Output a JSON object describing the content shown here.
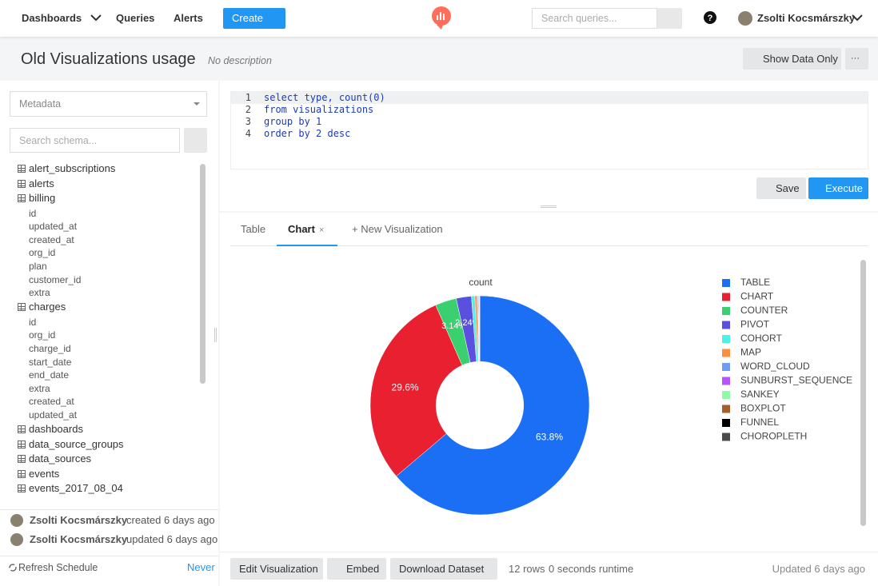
{
  "nav": {
    "items": [
      "Dashboards",
      "Queries",
      "Alerts"
    ],
    "create": "Create",
    "search_placeholder": "Search queries...",
    "user": "Zsolti Kocsmárszky"
  },
  "page": {
    "title": "Old Visualizations usage",
    "description": "No description",
    "show_data_only": "Show Data Only",
    "more": "···"
  },
  "sidebar": {
    "datasource": "Metadata",
    "search_placeholder": "Search schema...",
    "tables": [
      {
        "name": "alert_subscriptions",
        "columns": []
      },
      {
        "name": "alerts",
        "columns": []
      },
      {
        "name": "billing",
        "columns": [
          "id",
          "updated_at",
          "created_at",
          "org_id",
          "plan",
          "customer_id",
          "extra"
        ]
      },
      {
        "name": "charges",
        "columns": [
          "id",
          "org_id",
          "charge_id",
          "start_date",
          "end_date",
          "extra",
          "created_at",
          "updated_at"
        ]
      },
      {
        "name": "dashboards",
        "columns": []
      },
      {
        "name": "data_source_groups",
        "columns": []
      },
      {
        "name": "data_sources",
        "columns": []
      },
      {
        "name": "events",
        "columns": []
      },
      {
        "name": "events_2017_08_04",
        "columns": []
      }
    ],
    "history": [
      {
        "user": "Zsolti Kocsmárszky",
        "action": "created 6 days ago"
      },
      {
        "user": "Zsolti Kocsmárszky",
        "action": "updated 6 days ago"
      }
    ],
    "refresh": "Refresh Schedule",
    "schedule": "Never"
  },
  "editor": {
    "lines": [
      {
        "number": 1,
        "code": "select type, count(0)"
      },
      {
        "number": 2,
        "code": "from visualizations"
      },
      {
        "number": 3,
        "code": "group by 1"
      },
      {
        "number": 4,
        "code": "order by 2 desc"
      }
    ],
    "save": "Save",
    "execute": "Execute"
  },
  "tabs": {
    "items": [
      "Table",
      "Chart",
      "+ New Visualization"
    ],
    "close": "×"
  },
  "chart_data": {
    "type": "pie",
    "title": "count",
    "hole": 0.4,
    "legend": "right",
    "categories": [
      "TABLE",
      "CHART",
      "COUNTER",
      "PIVOT",
      "COHORT",
      "MAP",
      "WORD_CLOUD",
      "SUNBURST_SEQUENCE",
      "SANKEY",
      "BOXPLOT",
      "FUNNEL",
      "CHOROPLETH"
    ],
    "values": [
      63.8,
      29.6,
      3.14,
      2.24,
      0.5,
      0.3,
      0.15,
      0.1,
      0.07,
      0.05,
      0.03,
      0.02
    ],
    "value_labels": [
      "63.8%",
      "29.6%",
      "3.14%",
      "2.24%",
      null,
      null,
      null,
      null,
      null,
      null,
      null,
      null
    ],
    "colors": [
      "#1a6ff5",
      "#e8202f",
      "#3ad06f",
      "#5b4fe0",
      "#4ff0e6",
      "#fb8d3d",
      "#6f9cf5",
      "#b554ff",
      "#8ffca5",
      "#a55f2a",
      "#000000",
      "#4b4b4b"
    ]
  },
  "footer": {
    "buttons": [
      "Edit Visualization",
      "Embed",
      "Download Dataset"
    ],
    "rows": "12 rows",
    "runtime": "0 seconds runtime",
    "updated": "Updated 6 days ago"
  }
}
